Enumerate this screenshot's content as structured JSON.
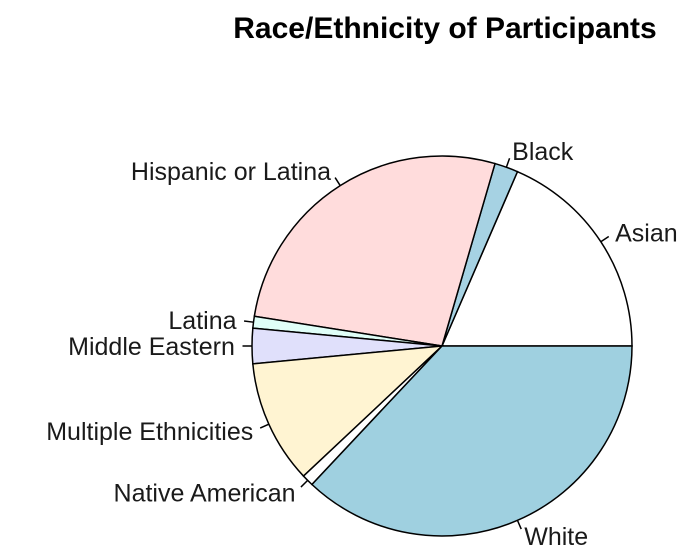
{
  "chart_data": {
    "type": "pie",
    "title": "Race/Ethnicity of Participants",
    "start_angle_deg": 0,
    "direction": "counterclockwise",
    "slices": [
      {
        "label": "Asian",
        "value": 18.5,
        "color": "#ffffff"
      },
      {
        "label": "Black",
        "value": 2.0,
        "color": "#a6d2e3"
      },
      {
        "label": "Hispanic or Latina",
        "value": 27.0,
        "color": "#ffdcdc"
      },
      {
        "label": "Latina",
        "value": 1.0,
        "color": "#e0fff8"
      },
      {
        "label": "Middle Eastern",
        "value": 3.0,
        "color": "#e0e0fb"
      },
      {
        "label": "Multiple Ethnicities",
        "value": 10.5,
        "color": "#fff4d2"
      },
      {
        "label": "Native American",
        "value": 1.0,
        "color": "#ffffff"
      },
      {
        "label": "White",
        "value": 37.0,
        "color": "#9fd0e0"
      }
    ]
  }
}
